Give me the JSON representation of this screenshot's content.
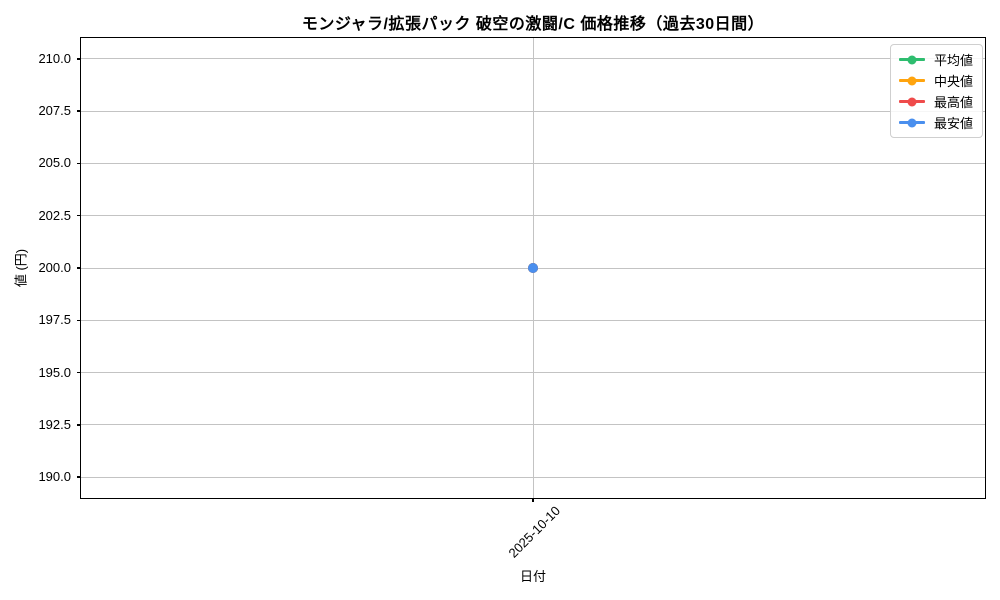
{
  "figure": {
    "background": "#ffffff",
    "grid_color": "#c3c3c3",
    "spine_color": "#000000",
    "text_color": "#000000"
  },
  "chart_data": {
    "type": "line",
    "title": "モンジャラ/拡張パック 破空の激闘/C 価格推移（過去30日間）",
    "xlabel": "日付",
    "ylabel": "値 (円)",
    "x": [
      "2025-10-10"
    ],
    "series": [
      {
        "name": "平均値",
        "color": "#2ebd6f",
        "values": [
          200.0
        ]
      },
      {
        "name": "中央値",
        "color": "#ffa40e",
        "values": [
          200.0
        ]
      },
      {
        "name": "最高値",
        "color": "#ef4b4b",
        "values": [
          200.0
        ]
      },
      {
        "name": "最安値",
        "color": "#4a8fee",
        "values": [
          200.0
        ]
      }
    ],
    "ylim": [
      189.0,
      211.0
    ],
    "yticks": [
      190.0,
      192.5,
      195.0,
      197.5,
      200.0,
      202.5,
      205.0,
      207.5,
      210.0
    ],
    "ytick_format_decimals": 1,
    "grid": true,
    "legend_position": "upper right",
    "x_tick_rotation_deg": 45
  }
}
